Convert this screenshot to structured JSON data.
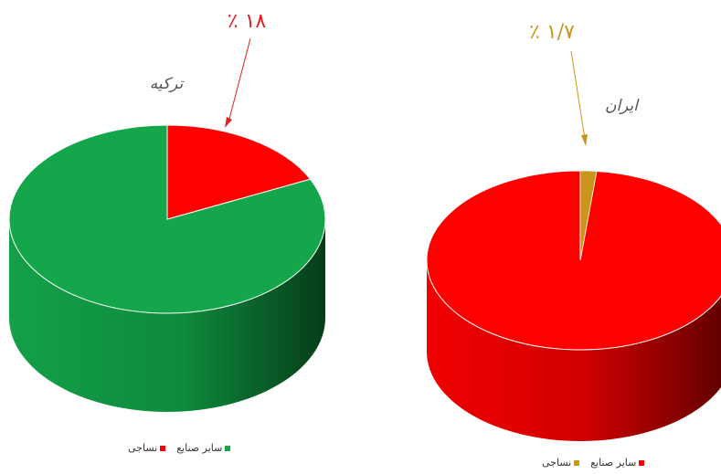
{
  "colors": {
    "red": "#ff0000",
    "red_dark": "#b00000",
    "green": "#14a64a",
    "green_dark": "#0a6b2c",
    "gold": "#c8961a"
  },
  "chart_data": [
    {
      "type": "pie",
      "title": "ترکیه",
      "categories": [
        "نساجی",
        "سایر صنایع"
      ],
      "values": [
        18,
        82
      ],
      "colors": [
        "#ff0000",
        "#14a64a"
      ],
      "label": "٪ ۱۸",
      "legend": [
        "سایر صنایع",
        "نساجی"
      ],
      "legend_position": "bottom"
    },
    {
      "type": "pie",
      "title": "ایران",
      "categories": [
        "نساجی",
        "سایر صنایع"
      ],
      "values": [
        1.7,
        98.3
      ],
      "colors": [
        "#c8961a",
        "#ff0000"
      ],
      "label": "٪ ۱/۷",
      "legend": [
        "سایر صنایع",
        "نساجی"
      ],
      "legend_position": "bottom"
    }
  ]
}
